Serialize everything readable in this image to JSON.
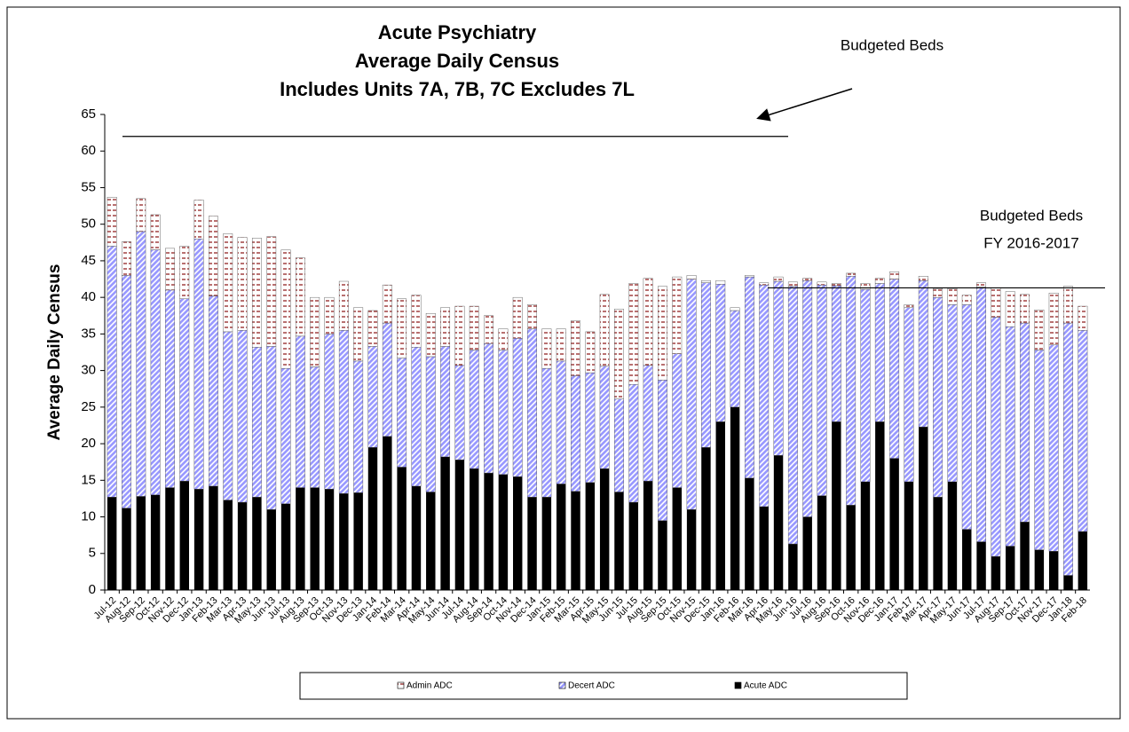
{
  "chart_data": {
    "type": "stacked_bar",
    "title": [
      "Acute Psychiatry",
      "Average Daily Census",
      "Includes Units 7A, 7B, 7C  Excludes 7L"
    ],
    "y_label": "Average Daily Census",
    "categories": [
      "Jul-12",
      "Aug-12",
      "Sep-12",
      "Oct-12",
      "Nov-12",
      "Dec-12",
      "Jan-13",
      "Feb-13",
      "Mar-13",
      "Apr-13",
      "May-13",
      "Jun-13",
      "Jul-13",
      "Aug-13",
      "Sep-13",
      "Oct-13",
      "Nov-13",
      "Dec-13",
      "Jan-14",
      "Feb-14",
      "Mar-14",
      "Apr-14",
      "May-14",
      "Jun-14",
      "Jul-14",
      "Aug-14",
      "Sep-14",
      "Oct-14",
      "Nov-14",
      "Dec-14",
      "Jan-15",
      "Feb-15",
      "Mar-15",
      "Apr-15",
      "May-15",
      "Jun-15",
      "Jul-15",
      "Aug-15",
      "Sep-15",
      "Oct-15",
      "Nov-15",
      "Dec-15",
      "Jan-16",
      "Feb-16",
      "Mar-16",
      "Apr-16",
      "May-16",
      "Jun-16",
      "Jul-16",
      "Aug-16",
      "Sep-16",
      "Oct-16",
      "Nov-16",
      "Dec-16",
      "Jan-17",
      "Feb-17",
      "Mar-17",
      "Apr-17",
      "May-17",
      "Jun-17",
      "Jul-17",
      "Aug-17",
      "Sep-17",
      "Oct-17",
      "Nov-17",
      "Dec-17",
      "Jan-18",
      "Feb-18"
    ],
    "series": [
      {
        "name": "Acute ADC",
        "color": "#000000",
        "values": [
          12.7,
          11.2,
          12.8,
          13,
          14,
          14.9,
          13.8,
          14.2,
          12.3,
          12,
          12.7,
          11,
          11.8,
          14,
          14,
          13.8,
          13.2,
          13.3,
          19.5,
          21,
          16.8,
          14.2,
          13.4,
          18.2,
          17.8,
          16.6,
          16,
          15.8,
          15.5,
          12.7,
          12.7,
          14.5,
          13.5,
          14.7,
          16.6,
          13.4,
          12,
          14.9,
          9.5,
          14,
          11,
          19.5,
          23,
          25,
          15.3,
          11.4,
          18.4,
          6.3,
          10,
          12.9,
          23,
          11.6,
          14.8,
          23,
          18,
          14.8,
          22.3,
          12.7,
          14.8,
          8.3,
          6.6,
          4.6,
          6,
          9.3,
          5.5,
          5.3,
          2,
          8
        ]
      },
      {
        "name": "Decert ADC",
        "color": "#9999ff",
        "values": [
          34.3,
          31.8,
          36.2,
          33.5,
          27,
          24.9,
          34.2,
          26,
          23,
          23.5,
          20.5,
          22.3,
          18.5,
          20.7,
          16.5,
          21.2,
          22.3,
          18,
          13.8,
          15.5,
          14.9,
          19,
          18.5,
          15.1,
          12.9,
          16.2,
          17.7,
          17,
          18.9,
          23,
          17.6,
          16.8,
          15.8,
          15,
          14,
          12.7,
          16.1,
          15.8,
          19.2,
          18.3,
          31.5,
          22.5,
          18.8,
          13.2,
          27.5,
          30.3,
          23.8,
          35.2,
          32.3,
          28.8,
          18.6,
          31.3,
          26.3,
          18.9,
          24.5,
          23.8,
          20,
          27.3,
          24.2,
          30.7,
          34.8,
          32.7,
          30,
          27.2,
          27.3,
          28.2,
          34.5,
          27.5
        ]
      },
      {
        "name": "Admin ADC",
        "color": "#993333",
        "values": [
          6.7,
          4.6,
          4.5,
          4.8,
          5.7,
          7.2,
          5.3,
          10.9,
          13.4,
          12.7,
          14.9,
          15,
          16.2,
          10.7,
          9.5,
          5,
          6.7,
          7.3,
          4.9,
          5.2,
          8.1,
          7.1,
          5.9,
          5.3,
          8.1,
          6,
          3.8,
          2.9,
          5.6,
          3.3,
          5.4,
          4.4,
          7.5,
          5.6,
          9.8,
          12.3,
          13.8,
          11.9,
          12.8,
          10.5,
          0.5,
          0.3,
          0.5,
          0.4,
          0.2,
          0.3,
          0.6,
          0.6,
          0.3,
          0.4,
          0.3,
          0.4,
          0.8,
          0.7,
          1,
          0.4,
          0.6,
          1.2,
          2.2,
          1.3,
          0.6,
          4,
          4.8,
          3.9,
          5.5,
          7.1,
          5,
          3.3
        ]
      }
    ],
    "reference_lines": [
      {
        "label": [
          "Budgeted Beds"
        ],
        "value": 62
      },
      {
        "label": [
          "Budgeted Beds",
          "FY 2016-2017"
        ],
        "value": 41.3
      }
    ],
    "ylim": [
      0,
      65
    ],
    "yticks": [
      0,
      5,
      10,
      15,
      20,
      25,
      30,
      35,
      40,
      45,
      50,
      55,
      60,
      65
    ],
    "grid": false
  }
}
